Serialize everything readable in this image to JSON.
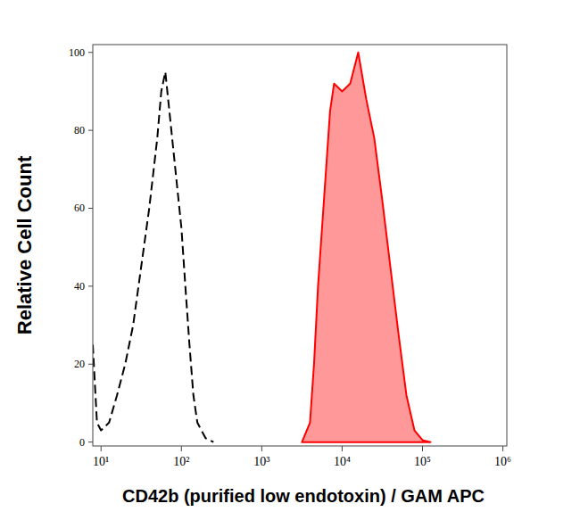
{
  "chart_data": {
    "type": "line",
    "log": "x",
    "x_label": "CD42b (purified low endotoxin) / GAM APC",
    "y_label": "Relative Cell Count",
    "xlim": [
      7.9,
      1120000
    ],
    "ylim": [
      -1,
      102
    ],
    "xticks": [
      {
        "value": 10,
        "label": "10¹"
      },
      {
        "value": 100,
        "label": "10²"
      },
      {
        "value": 1000,
        "label": "10³"
      },
      {
        "value": 10000,
        "label": "10⁴"
      },
      {
        "value": 100000,
        "label": "10⁵"
      },
      {
        "value": 1000000,
        "label": "10⁶"
      }
    ],
    "yticks": [
      0,
      20,
      40,
      60,
      80,
      100
    ],
    "series": [
      {
        "type": "line",
        "line_style": "dashed",
        "color": "#000000",
        "x": [
          7.9,
          8.9,
          10,
          12.6,
          15.8,
          20,
          25.1,
          31.6,
          39.8,
          50.1,
          56.2,
          63.1,
          70.8,
          79.4,
          100,
          112,
          126,
          141,
          158,
          200,
          251
        ],
        "values": [
          25,
          5,
          3,
          5,
          12,
          20,
          30,
          45,
          60,
          78,
          90,
          95,
          85,
          75,
          55,
          40,
          25,
          12,
          5,
          1,
          0
        ]
      },
      {
        "type": "area",
        "color": "#ff0000",
        "x": [
          3162,
          3981,
          4467,
          5012,
          6310,
          7079,
          7943,
          10000,
          12589,
          15849,
          19953,
          25119,
          31623,
          39811,
          50119,
          63096,
          79433,
          100000,
          125893
        ],
        "values": [
          0,
          5,
          20,
          40,
          70,
          85,
          92,
          90,
          92,
          100,
          88,
          78,
          62,
          45,
          28,
          12,
          3,
          0.5,
          0
        ]
      }
    ]
  }
}
